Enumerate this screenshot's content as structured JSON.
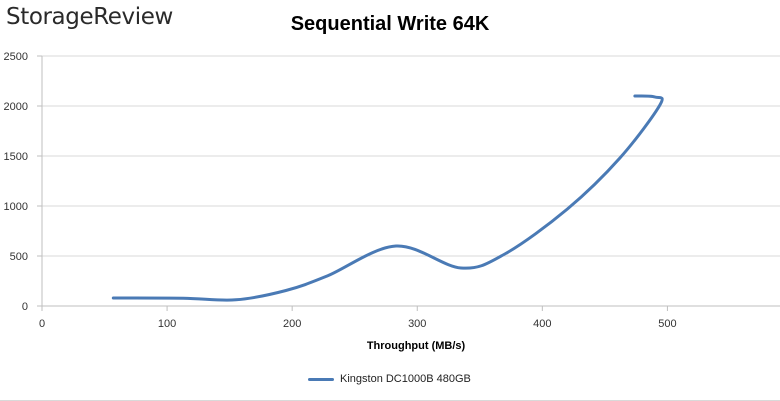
{
  "brand": "StorageReview",
  "chart_data": {
    "type": "line",
    "title": "Sequential Write 64K",
    "xlabel": "Throughput (MB/s)",
    "ylabel": "",
    "xlim": [
      0,
      590
    ],
    "ylim": [
      0,
      2500
    ],
    "xticks": [
      0,
      100,
      200,
      300,
      400,
      500
    ],
    "yticks": [
      0,
      500,
      1000,
      1500,
      2000,
      2500
    ],
    "grid": "horizontal",
    "legend_position": "bottom",
    "series": [
      {
        "name": "Kingston DC1000B 480GB",
        "color": "#4a7ab5",
        "x": [
          57,
          113,
          155,
          195,
          228,
          283,
          335,
          370,
          420,
          462,
          494,
          490,
          474
        ],
        "y": [
          80,
          78,
          62,
          155,
          300,
          600,
          380,
          520,
          970,
          1480,
          2010,
          2090,
          2100
        ]
      }
    ]
  }
}
